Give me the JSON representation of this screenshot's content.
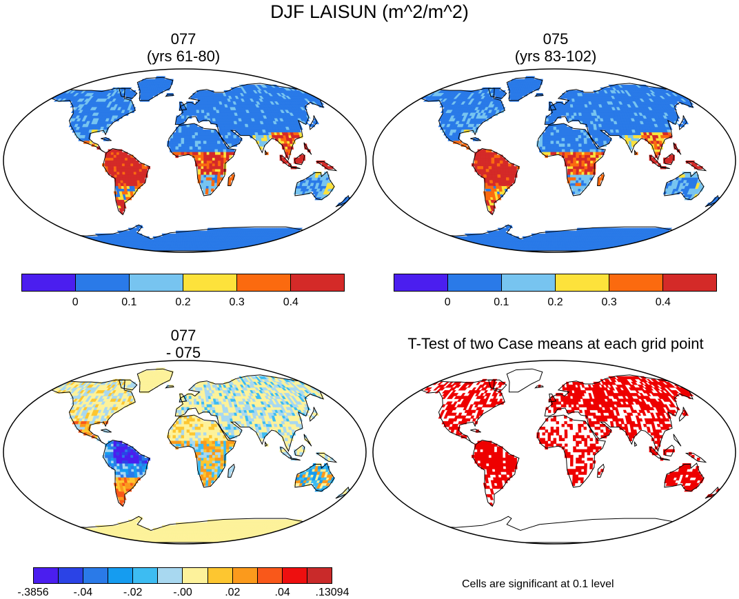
{
  "title": "DJF LAISUN (m^2/m^2)",
  "panels": [
    {
      "id": "p1",
      "title_line1": "077",
      "title_line2": "(yrs 61-80)",
      "palette": "abs"
    },
    {
      "id": "p2",
      "title_line1": "075",
      "title_line2": "(yrs 83-102)",
      "palette": "abs"
    },
    {
      "id": "p3",
      "title_line1": "077",
      "title_line2": "- 075",
      "palette": "diff"
    },
    {
      "id": "p4",
      "title_line1": "T-Test of two Case means at each grid point",
      "title_line2": "",
      "palette": "sig"
    }
  ],
  "colorbar_abs": {
    "colors": [
      "#4b1eef",
      "#2a7ae8",
      "#77c4f0",
      "#fde23b",
      "#fb6a0f",
      "#d42a28"
    ],
    "labels": [
      "0",
      "0.1",
      "0.2",
      "0.3",
      "0.4"
    ]
  },
  "colorbar_diff": {
    "colors": [
      "#4b1eef",
      "#2b43e6",
      "#2a7ae8",
      "#159cf0",
      "#3dbcf2",
      "#a8d8f0",
      "#fdf29b",
      "#fdc630",
      "#fb9a1c",
      "#f9581a",
      "#ee0f0f",
      "#c92a2a"
    ],
    "labels": [
      "-.3856",
      "-.04",
      "-.02",
      "-.00",
      ".02",
      ".04",
      ".13094"
    ]
  },
  "significance_note": "Cells are significant at 0.1 level",
  "significance_color": "#ee0000"
}
